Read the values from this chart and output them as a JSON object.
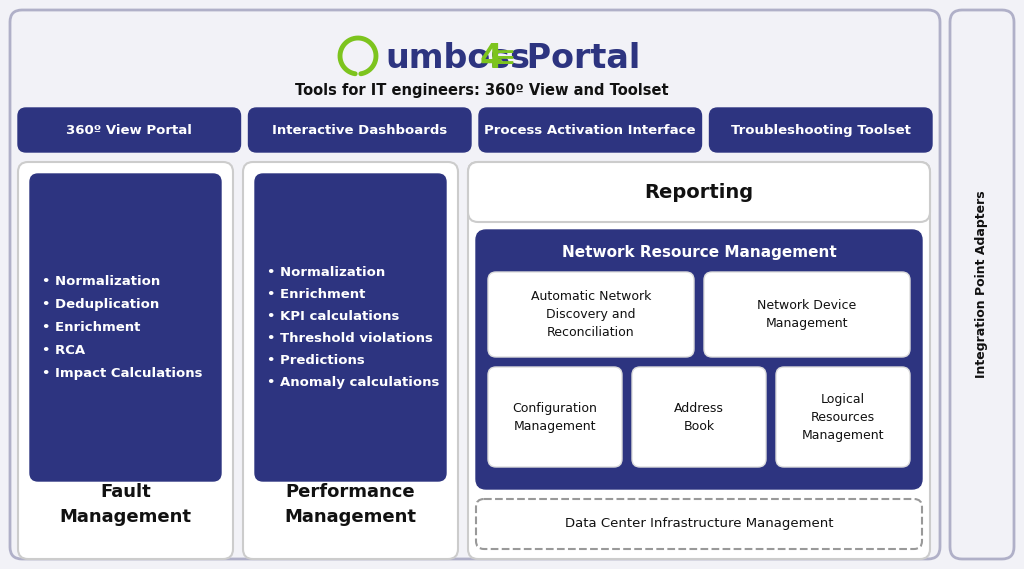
{
  "bg_color": "#f2f2f7",
  "dark_blue": "#2d3480",
  "white": "#ffffff",
  "light_gray": "#f5f5f8",
  "green": "#7dc41e",
  "black": "#111111",
  "subtitle": "Tools for IT engineers: 360º View and Toolset",
  "portal_boxes": [
    "360º View Portal",
    "Interactive Dashboards",
    "Process Activation Interface",
    "Troubleshooting Toolset"
  ],
  "fault_title": "Fault\nManagement",
  "fault_items": "• Normalization\n• Deduplication\n• Enrichment\n• RCA\n• Impact Calculations",
  "perf_title": "Performance\nManagement",
  "perf_items": "• Normalization\n• Enrichment\n• KPI calculations\n• Threshold violations\n• Predictions\n• Anomaly calculations",
  "reporting_title": "Reporting",
  "nrm_title": "Network Resource Management",
  "nrm_r1_box1": "Automatic Network\nDiscovery and\nReconciliation",
  "nrm_r1_box2": "Network Device\nManagement",
  "nrm_r2_box1": "Configuration\nManagement",
  "nrm_r2_box2": "Address\nBook",
  "nrm_r2_box3": "Logical\nResources\nManagement",
  "dcim": "Data Center Infrastructure Management",
  "integration": "Integration Point Adapters"
}
